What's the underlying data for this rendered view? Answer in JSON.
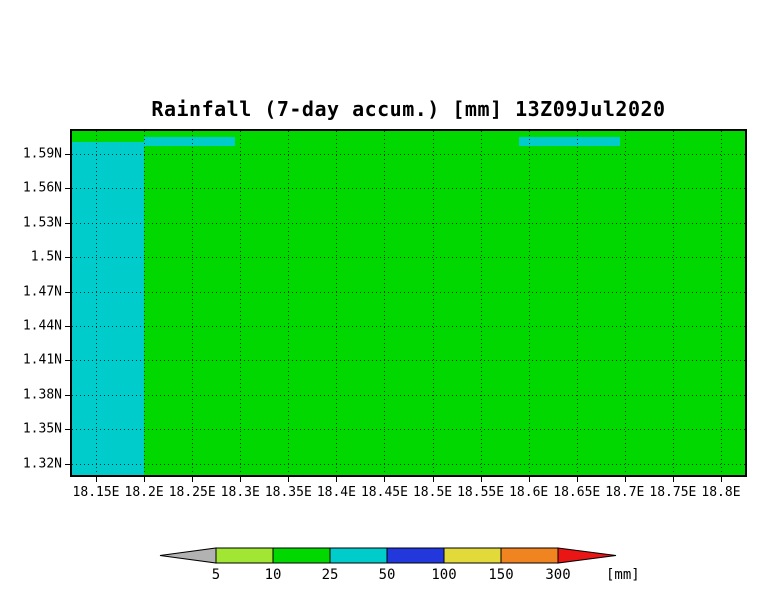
{
  "page": {
    "background_color": "#ffffff"
  },
  "chart_data": {
    "type": "heatmap",
    "title": "Rainfall (7-day accum.) [mm] 13Z09Jul2020",
    "grid": "dotted",
    "xlim": [
      18.125,
      18.825
    ],
    "ylim": [
      1.31,
      1.61
    ],
    "background_band": "10-25",
    "background_color": "#00d800",
    "x_axis": {
      "labels": [
        "18.15E",
        "18.2E",
        "18.25E",
        "18.3E",
        "18.35E",
        "18.4E",
        "18.45E",
        "18.5E",
        "18.55E",
        "18.6E",
        "18.65E",
        "18.7E",
        "18.75E",
        "18.8E"
      ],
      "values": [
        18.15,
        18.2,
        18.25,
        18.3,
        18.35,
        18.4,
        18.45,
        18.5,
        18.55,
        18.6,
        18.65,
        18.7,
        18.75,
        18.8
      ]
    },
    "y_axis": {
      "labels": [
        "1.59N",
        "1.56N",
        "1.53N",
        "1.5N",
        "1.47N",
        "1.44N",
        "1.41N",
        "1.38N",
        "1.35N",
        "1.32N"
      ],
      "values": [
        1.59,
        1.56,
        1.53,
        1.5,
        1.47,
        1.44,
        1.41,
        1.38,
        1.35,
        1.32
      ]
    },
    "regions": [
      {
        "band": "25-50",
        "color": "#00cccc",
        "x0": 18.125,
        "x1": 18.2,
        "y0": 1.31,
        "y1": 1.6005
      },
      {
        "band": "25-50",
        "color": "#00cccc",
        "x0": 18.2,
        "x1": 18.295,
        "y0": 1.5965,
        "y1": 1.6045
      },
      {
        "band": "25-50",
        "color": "#00cccc",
        "x0": 18.59,
        "x1": 18.695,
        "y0": 1.5965,
        "y1": 1.6045
      }
    ],
    "colorbar": {
      "ticks": [
        "5",
        "10",
        "25",
        "50",
        "100",
        "150",
        "300"
      ],
      "unit": "[mm]",
      "segments": [
        {
          "band": "<5",
          "color": "#b2b2b2",
          "shape": "arrow-left"
        },
        {
          "band": "5-10",
          "color": "#a0e632",
          "shape": "rect"
        },
        {
          "band": "10-25",
          "color": "#00d800",
          "shape": "rect"
        },
        {
          "band": "25-50",
          "color": "#00cccc",
          "shape": "rect"
        },
        {
          "band": "50-100",
          "color": "#2238dd",
          "shape": "rect"
        },
        {
          "band": "100-150",
          "color": "#e2d93b",
          "shape": "rect"
        },
        {
          "band": "150-300",
          "color": "#ef8421",
          "shape": "rect"
        },
        {
          "band": ">300",
          "color": "#ea1515",
          "shape": "arrow-right"
        }
      ]
    }
  }
}
